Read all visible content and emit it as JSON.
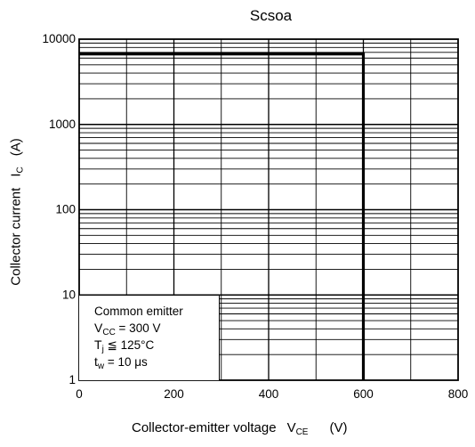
{
  "chart_data": {
    "type": "line",
    "title": "Scsoa",
    "xlabel": {
      "text": "Collector-emitter voltage",
      "symbol": "V",
      "subscript": "CE",
      "unit": "(V)"
    },
    "ylabel": {
      "text": "Collector current",
      "symbol": "I",
      "subscript": "C",
      "unit": "(A)"
    },
    "xlim": [
      0,
      800
    ],
    "ylim": [
      1,
      10000
    ],
    "yscale": "log",
    "grid": true,
    "x_ticks": [
      "0",
      "200",
      "400",
      "600",
      "800"
    ],
    "y_ticks": [
      "1",
      "10",
      "100",
      "1000",
      "10000"
    ],
    "series": [
      {
        "x": [
          0,
          600,
          600
        ],
        "y": [
          6700,
          6700,
          1
        ]
      }
    ]
  },
  "legend": {
    "line1": "Common emitter",
    "line2_sym": "V",
    "line2_sub": "CC",
    "line2_val": " = 300 V",
    "line3_sym": "T",
    "line3_sub": "j",
    "line3_val": " ≦ 125°C",
    "line4_sym": "t",
    "line4_sub": "w",
    "line4_val": " = 10 μs"
  }
}
